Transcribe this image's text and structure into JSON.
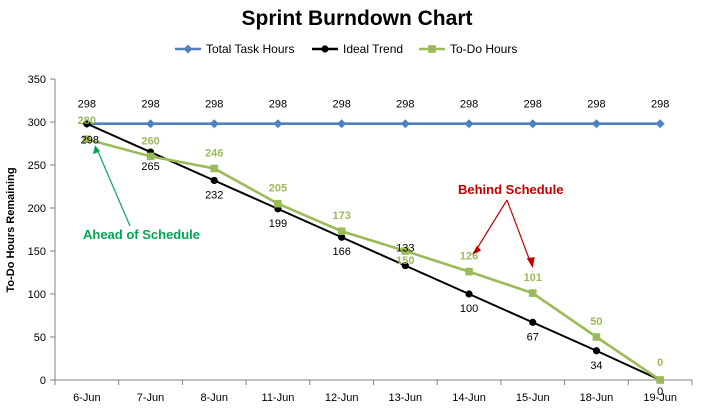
{
  "chart_data": {
    "type": "line",
    "title": "Sprint Burndown Chart",
    "xlabel": "",
    "ylabel": "To-Do Hours Remaining",
    "ylim": [
      0,
      350
    ],
    "yticks": [
      0,
      50,
      100,
      150,
      200,
      250,
      300,
      350
    ],
    "grid": false,
    "legend": "top",
    "categories": [
      "6-Jun",
      "7-Jun",
      "8-Jun",
      "11-Jun",
      "12-Jun",
      "13-Jun",
      "14-Jun",
      "15-Jun",
      "18-Jun",
      "19-Jun"
    ],
    "series": [
      {
        "name": "Total Task Hours",
        "color": "#4f81bd",
        "marker": "diamond",
        "values": [
          298,
          298,
          298,
          298,
          298,
          298,
          298,
          298,
          298,
          298
        ],
        "labels": [
          "298",
          "298",
          "298",
          "298",
          "298",
          "298",
          "298",
          "298",
          "298",
          "298"
        ]
      },
      {
        "name": "Ideal Trend",
        "color": "#000000",
        "marker": "circle",
        "values": [
          298,
          265,
          232,
          199,
          166,
          133,
          100,
          67,
          34,
          0
        ],
        "labels": [
          "298",
          "265",
          "232",
          "199",
          "166",
          "133",
          "100",
          "67",
          "34",
          "0"
        ]
      },
      {
        "name": "To-Do Hours",
        "color": "#9bbb59",
        "marker": "square",
        "values": [
          280,
          260,
          246,
          205,
          173,
          150,
          126,
          101,
          50,
          0
        ],
        "labels": [
          "280",
          "260",
          "246",
          "205",
          "173",
          "150",
          "126",
          "101",
          "50",
          "0"
        ]
      }
    ],
    "annotations": [
      {
        "text": "Ahead of Schedule",
        "color": "#00a651"
      },
      {
        "text": "Behind Schedule",
        "color": "#c00000"
      }
    ]
  }
}
